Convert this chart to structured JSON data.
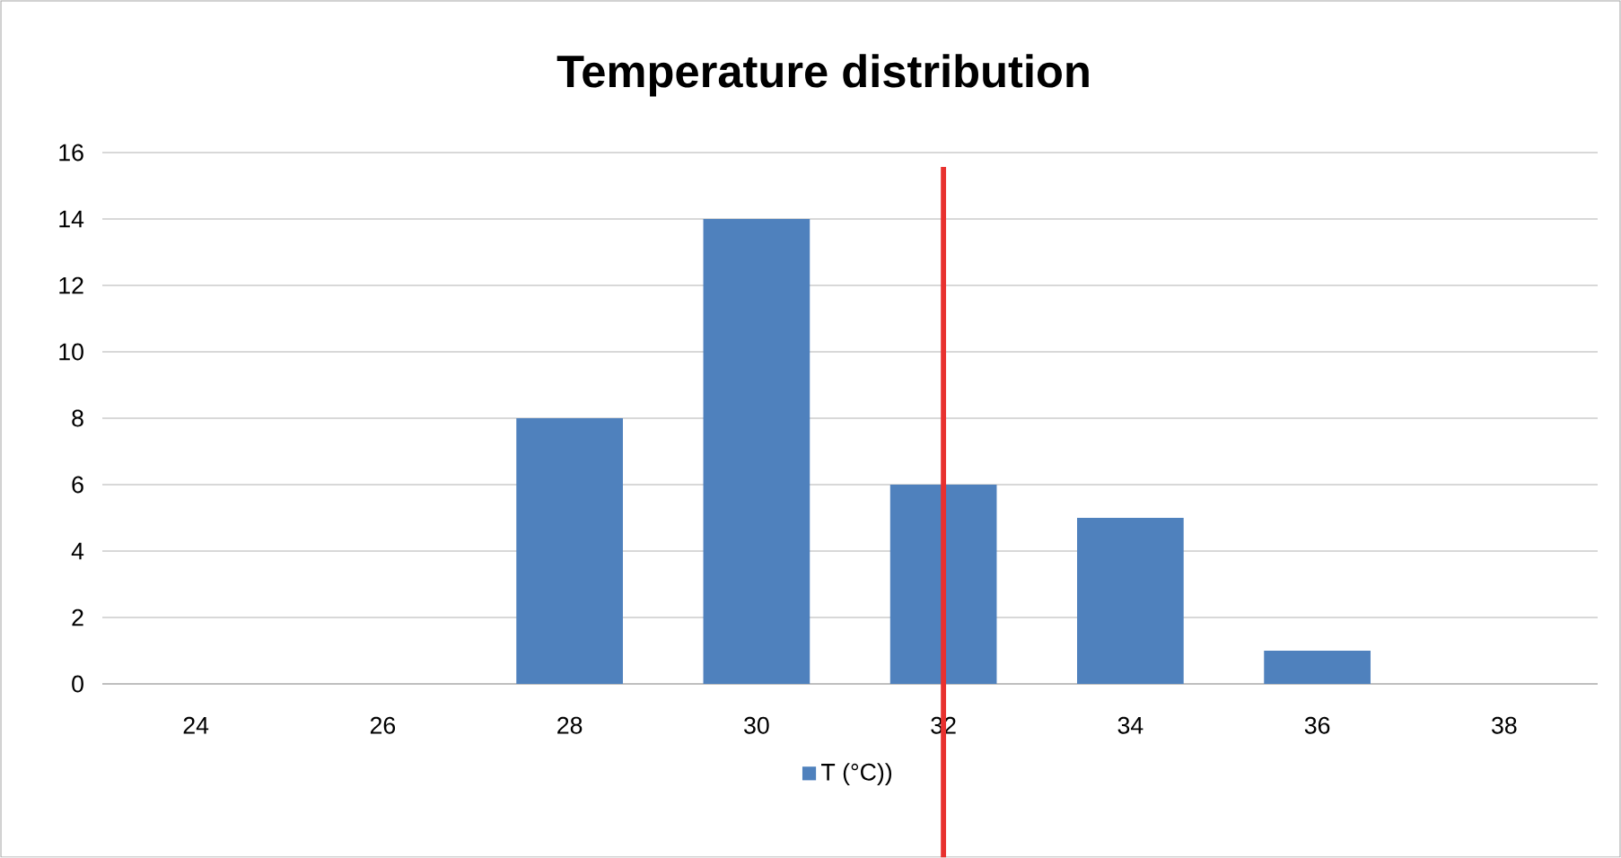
{
  "chart_data": {
    "type": "bar",
    "title": "Temperature distribution",
    "categories": [
      "24",
      "26",
      "28",
      "30",
      "32",
      "34",
      "36",
      "38"
    ],
    "series": [
      {
        "name": "T (°C))",
        "color": "#4f81bd",
        "values": [
          0,
          0,
          8,
          14,
          6,
          5,
          1,
          0
        ]
      }
    ],
    "ylim": [
      0,
      16
    ],
    "yticks": [
      0,
      2,
      4,
      6,
      8,
      10,
      12,
      14,
      16
    ],
    "grid": "y",
    "legend": "bottom",
    "ref_lines": [
      {
        "axis": "x",
        "value": "32",
        "color": "#e8312f"
      }
    ]
  }
}
